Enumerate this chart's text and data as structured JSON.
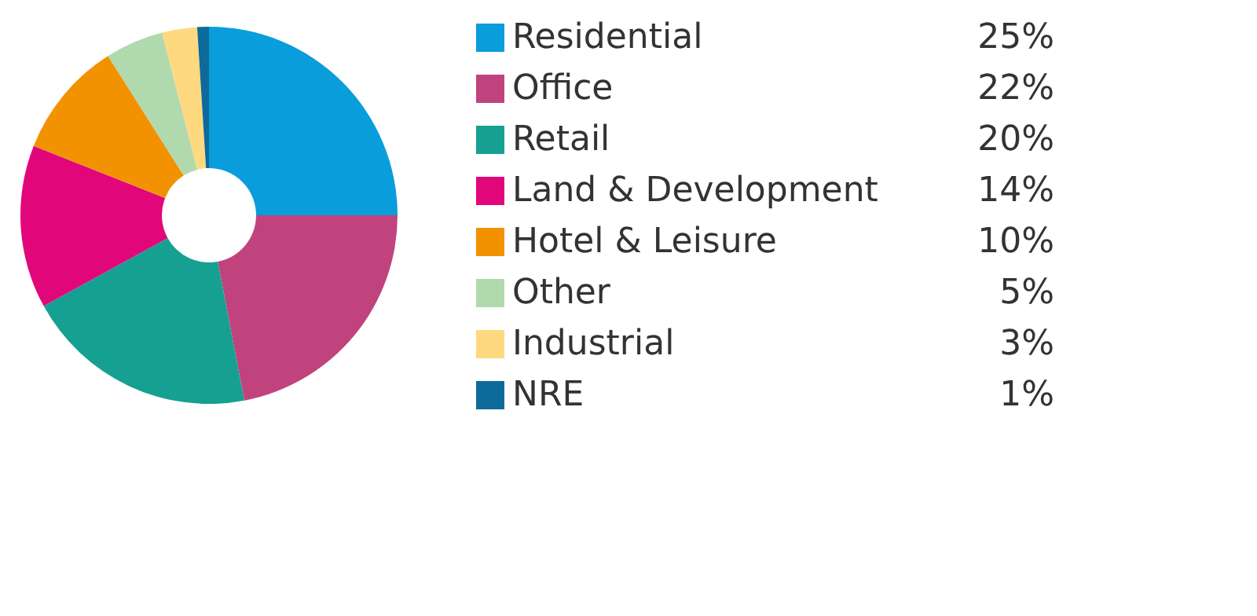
{
  "chart_data": {
    "type": "donut",
    "categories": [
      "Residential",
      "Office",
      "Retail",
      "Land & Development",
      "Hotel & Leisure",
      "Other",
      "Industrial",
      "NRE"
    ],
    "values": [
      25,
      22,
      20,
      14,
      10,
      5,
      3,
      1
    ],
    "value_labels": [
      "25%",
      "22%",
      "20%",
      "14%",
      "10%",
      "5%",
      "3%",
      "1%"
    ],
    "colors": [
      "#0a9ddb",
      "#c0437e",
      "#16a091",
      "#e2067b",
      "#f39200",
      "#b1d9ae",
      "#fed97f",
      "#0d6a9b"
    ],
    "legend": "right"
  }
}
